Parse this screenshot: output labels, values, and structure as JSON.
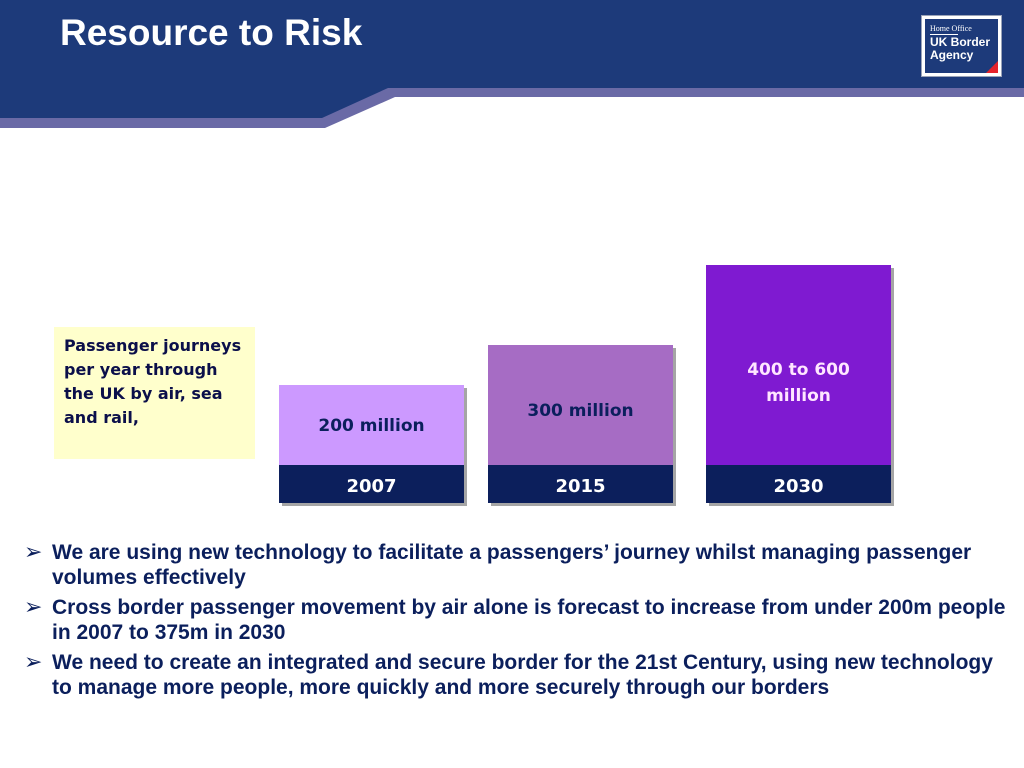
{
  "slide": {
    "title": "Resource to Risk",
    "logo": {
      "org": "Home Office",
      "name": "UK Border Agency"
    },
    "note": "Passenger journeys per year through the UK by air, sea and rail,",
    "bullets": [
      "We are using new technology to facilitate a passengers’  journey whilst managing passenger volumes effectively",
      "Cross border passenger movement by air alone is forecast to increase from under 200m people in 2007 to 375m in 2030",
      "We need to create an integrated and secure border for the 21st Century, using new technology to manage more people, more quickly and more securely through our borders"
    ],
    "bullet_icon": "arrow-bullet-icon"
  },
  "colors": {
    "header": "#1d3a7a",
    "header_accent": "#6a6aa6",
    "year_bar": "#0c1f5c",
    "bar_2007": "#cc99ff",
    "bar_2015": "#a66cc4",
    "bar_2030": "#7f1ad1",
    "note_bg": "#ffffcc",
    "text_dark": "#0b1f5c"
  },
  "chart_data": {
    "type": "bar",
    "categories": [
      "2007",
      "2015",
      "2030"
    ],
    "values": [
      200,
      300,
      500
    ],
    "value_labels": [
      "200 million",
      "300 million",
      "400 to 600 million"
    ],
    "units": "million passenger journeys",
    "title": "",
    "xlabel": "",
    "ylabel": "",
    "grid": false,
    "legend": "none"
  }
}
